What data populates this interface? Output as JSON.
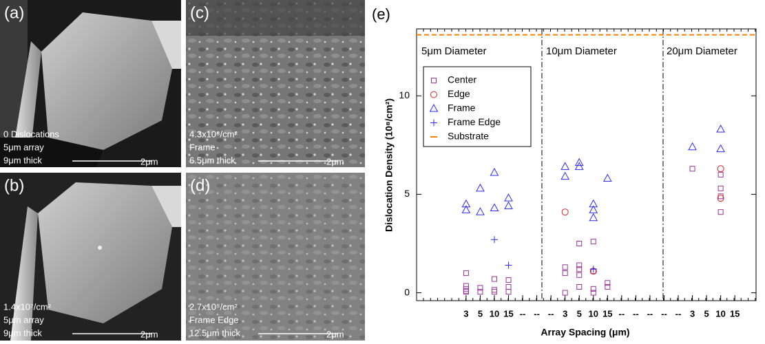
{
  "panels": [
    {
      "label": "(a)",
      "caption": [
        "0 Dislocations",
        "5μm array",
        "9μm thick"
      ],
      "scale": "2μm"
    },
    {
      "label": "(b)",
      "caption": [
        "1.4x10⁷/cm²",
        "5μm array",
        "9μm thick"
      ],
      "scale": "2μm"
    },
    {
      "label": "(c)",
      "caption": [
        "4.3x10⁸/cm²",
        "Frame",
        "6.5μm thick"
      ],
      "scale": "2μm"
    },
    {
      "label": "(d)",
      "caption": [
        "2.7x10⁸/cm²",
        "Frame Edge",
        "12.5μm thick"
      ],
      "scale": "2μm"
    }
  ],
  "chart_data": {
    "type": "scatter",
    "title": "(e)",
    "x_label": "Array Spacing (μm)",
    "y_label": "Dislocation Density (10⁸/cm²)",
    "annotations": [
      "5μm Diameter",
      "10μm Diameter",
      "20μm Diameter"
    ],
    "xlim": [
      -0.5,
      23.5
    ],
    "ylim": [
      -0.4,
      13.4
    ],
    "yticks": [
      0,
      5,
      10
    ],
    "xticks": [
      {
        "value": 3,
        "label": "3"
      },
      {
        "value": 4,
        "label": "5"
      },
      {
        "value": 5,
        "label": "10"
      },
      {
        "value": 6,
        "label": "15"
      },
      {
        "value": 7,
        "label": "--"
      },
      {
        "value": 8,
        "label": "--"
      },
      {
        "value": 9,
        "label": "--"
      },
      {
        "value": 10,
        "label": "3"
      },
      {
        "value": 11,
        "label": "5"
      },
      {
        "value": 12,
        "label": "10"
      },
      {
        "value": 13,
        "label": "15"
      },
      {
        "value": 14,
        "label": "--"
      },
      {
        "value": 15,
        "label": "--"
      },
      {
        "value": 16,
        "label": "--"
      },
      {
        "value": 17,
        "label": "--"
      },
      {
        "value": 18,
        "label": "--"
      },
      {
        "value": 19,
        "label": "3"
      },
      {
        "value": 20,
        "label": "5"
      },
      {
        "value": 21,
        "label": "10"
      },
      {
        "value": 22,
        "label": "15"
      }
    ],
    "legend": "upper left",
    "series": [
      {
        "name": "Center",
        "color": "#993399",
        "marker": "square",
        "x": [
          3,
          3,
          3,
          3,
          3,
          4,
          4,
          5,
          5,
          5,
          6,
          6,
          6,
          10,
          10,
          10,
          11,
          11,
          11,
          11,
          11,
          12,
          12,
          12,
          12,
          13,
          13,
          19,
          21,
          21,
          21,
          21
        ],
        "y": [
          1.0,
          0.35,
          0.2,
          0.1,
          0.05,
          0.25,
          0.05,
          0.7,
          0.15,
          0.05,
          0.65,
          0.3,
          0.05,
          1.3,
          1.0,
          0.0,
          2.5,
          1.4,
          1.2,
          0.9,
          0.3,
          2.6,
          1.1,
          0.2,
          0.0,
          0.5,
          0.3,
          6.3,
          6.0,
          5.3,
          4.9,
          4.1
        ]
      },
      {
        "name": "Edge",
        "color": "#e02020",
        "marker": "circle",
        "x": [
          10,
          12,
          21,
          21
        ],
        "y": [
          4.1,
          1.1,
          6.3,
          4.8
        ]
      },
      {
        "name": "Frame",
        "color": "#2a2aff",
        "marker": "triangle",
        "x": [
          3,
          3,
          4,
          4,
          5,
          5,
          6,
          6,
          10,
          10,
          11,
          11,
          12,
          12,
          12,
          13,
          19,
          21,
          21
        ],
        "y": [
          4.5,
          4.2,
          5.3,
          4.1,
          6.1,
          4.3,
          4.8,
          4.4,
          6.4,
          5.9,
          6.6,
          6.4,
          4.5,
          4.2,
          3.8,
          5.8,
          7.4,
          8.3,
          7.3
        ]
      },
      {
        "name": "Frame Edge",
        "color": "#2a2aff",
        "marker": "plus",
        "x": [
          5,
          6,
          12
        ],
        "y": [
          2.7,
          1.4,
          1.2
        ]
      },
      {
        "name": "Substrate",
        "color": "#ff8000",
        "marker": "dash",
        "y": [
          13.1
        ]
      }
    ]
  }
}
